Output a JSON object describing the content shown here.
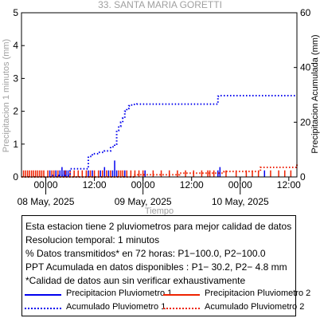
{
  "chart_data": {
    "type": "line",
    "title": "33. SANTA MARIA GORETTI",
    "xlabel": "Tiempo",
    "ylabel_left": "Precipitacion 1 minutos (mm)",
    "ylabel_right": "Precipitacion Acumulada (mm)",
    "ylim_left": [
      0,
      5
    ],
    "ylim_right": [
      0,
      60
    ],
    "yticks_left": [
      "0",
      "1",
      "2",
      "3",
      "4",
      "5"
    ],
    "yticks_right": [
      "0",
      "20",
      "40",
      "60"
    ],
    "xlim_hours": [
      -6,
      62
    ],
    "xticks": [
      {
        "h": 0,
        "label": "00:00"
      },
      {
        "h": 12,
        "label": "12:00"
      },
      {
        "h": 24,
        "label": "00:00"
      },
      {
        "h": 36,
        "label": "12:00"
      },
      {
        "h": 48,
        "label": "00:00"
      },
      {
        "h": 60,
        "label": "12:00"
      }
    ],
    "date_labels": [
      {
        "h": 0,
        "label": "08 May, 2025"
      },
      {
        "h": 24,
        "label": "09 May, 2025"
      },
      {
        "h": 48,
        "label": "10 May, 2025"
      }
    ],
    "colors": {
      "p1": "#0000ee",
      "p2": "#ee2200"
    },
    "series": [
      {
        "name": "Precipitacion Pluviometro 1",
        "style": "solid",
        "color": "#0000ee",
        "axis": "left",
        "kind": "bars",
        "x": [
          1.0,
          2.5,
          3.5,
          4.0,
          4.5,
          5.0,
          5.5,
          10.5,
          11.5,
          13.5,
          14.5,
          15.5,
          16.5,
          17.0,
          17.5,
          19.5,
          24.5,
          42.5,
          43.0,
          54.0
        ],
        "y": [
          0.2,
          0.2,
          0.2,
          0.3,
          0.2,
          0.2,
          0.2,
          0.2,
          0.2,
          0.2,
          0.3,
          0.2,
          0.2,
          0.5,
          0.2,
          0.2,
          0.2,
          0.2,
          0.3,
          0.2
        ]
      },
      {
        "name": "Precipitacion Pluviometro 2",
        "style": "solid",
        "color": "#ee2200",
        "axis": "left",
        "kind": "bars",
        "x": [
          -5.5,
          -5.0,
          -4.5,
          -4.0,
          -3.5,
          -3.0,
          -2.5,
          -2.0,
          -1.5,
          -1.0,
          -0.5,
          0.5,
          1.5,
          2.0,
          3.0,
          4.8,
          6.0,
          7.0,
          8.0,
          9.0,
          10.0,
          11.0,
          12.0,
          13.0,
          14.0,
          15.0,
          16.0,
          18.0,
          18.5,
          19.0,
          20.0,
          21.0,
          22.0,
          23.0,
          24.0,
          26.5,
          28.5,
          30.5,
          32.5,
          34.5,
          36.5,
          38.5,
          40.0,
          40.5,
          41.5,
          44.5,
          47.0,
          49.5,
          51.0,
          52.5,
          55.5,
          57.5,
          59.0,
          60.5
        ],
        "y": [
          0.2,
          0.2,
          0.2,
          0.2,
          0.2,
          0.2,
          0.2,
          0.2,
          0.2,
          0.2,
          0.2,
          0.2,
          0.2,
          0.2,
          0.2,
          0.2,
          0.2,
          0.2,
          0.2,
          0.2,
          0.2,
          0.2,
          0.2,
          0.2,
          0.2,
          0.2,
          0.2,
          0.2,
          0.2,
          0.2,
          0.2,
          0.2,
          0.2,
          0.2,
          0.2,
          0.2,
          0.2,
          0.2,
          0.2,
          0.2,
          0.2,
          0.2,
          0.2,
          0.2,
          0.2,
          0.2,
          0.2,
          0.2,
          0.2,
          0.2,
          0.2,
          0.2,
          0.2,
          0.2
        ]
      },
      {
        "name": "Acumulado Pluviometro 1",
        "style": "dotted",
        "color": "#0000ee",
        "axis": "right",
        "kind": "step",
        "x": [
          -6,
          1,
          1.5,
          5.5,
          6.0,
          9.5,
          10.5,
          11.5,
          12.5,
          13.0,
          14.5,
          16.0,
          17.0,
          17.5,
          18.0,
          18.5,
          19.0,
          19.5,
          20.0,
          20.5,
          21.0,
          21.5,
          22.5,
          24.0,
          42.0,
          42.5,
          43.0,
          62.0
        ],
        "y": [
          0,
          0,
          0.5,
          0.5,
          3.0,
          3.0,
          7.5,
          8.5,
          8.5,
          9.0,
          9.5,
          11.0,
          12.0,
          17.0,
          18.5,
          20.0,
          21.5,
          24.0,
          25.0,
          26.0,
          26.3,
          26.5,
          26.6,
          26.6,
          26.6,
          29.5,
          29.7,
          29.7
        ]
      },
      {
        "name": "Acumulado Pluviometro 2",
        "style": "dotted",
        "color": "#ee2200",
        "axis": "right",
        "kind": "step",
        "x": [
          -6,
          5,
          22,
          33,
          44,
          53,
          62
        ],
        "y": [
          0,
          0,
          0.8,
          1.4,
          2.0,
          3.5,
          4.8
        ]
      }
    ]
  },
  "info": {
    "line1": "Esta estacion tiene 2 pluviometros para mejor calidad de datos",
    "line2": "Resolucion temporal: 1 minutos",
    "line3": "% Datos transmitidos* en 72 horas: P1−100.0, P2−100.0",
    "line4": "PPT Acumulada en datos disponibles : P1− 30.2, P2−  4.8 mm",
    "line5": "*Calidad de datos aun sin verificar exhaustivamente"
  },
  "legend": {
    "p1_instant": "Precipitacion Pluviometro 1",
    "p2_instant": "Precipitacion Pluviometro 2",
    "p1_accum": "Acumulado Pluviometro 1",
    "p2_accum": "Acumulado Pluviometro 2"
  }
}
